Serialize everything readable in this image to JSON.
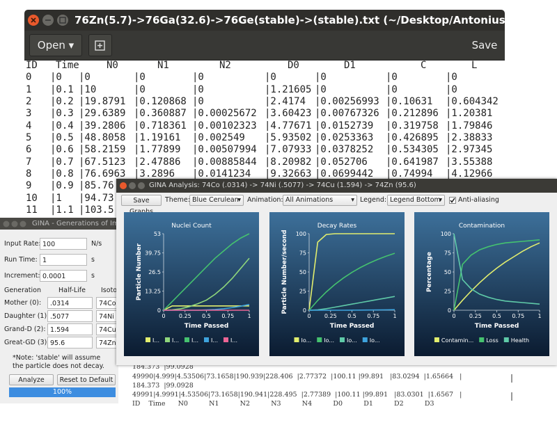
{
  "editor": {
    "title": "76Zn(5.7)->76Ga(32.6)->76Ge(stable)->(stable).txt (~/Desktop/Antonius-GINA/b..._",
    "open": "Open",
    "save": "Save",
    "header": [
      "ID",
      "Time",
      "N0",
      "N1",
      "N2",
      "D0",
      "D1",
      "C",
      "L"
    ],
    "rows": [
      [
        "0",
        "|0",
        "|0",
        "|0",
        "|0",
        "|0",
        "|0",
        "|0",
        "|0"
      ],
      [
        "1",
        "|0.1",
        "|10",
        "|0",
        "|0",
        "|1.21605",
        "|0",
        "|0",
        "|0"
      ],
      [
        "2",
        "|0.2",
        "|19.8791",
        "|0.120868",
        "|0",
        "|2.4174",
        "|0.00256993",
        "|0.10631",
        "|0.604342"
      ],
      [
        "3",
        "|0.3",
        "|29.6389",
        "|0.360887",
        "|0.00025672",
        "|3.60423",
        "|0.00767326",
        "|0.212896",
        "|1.20381"
      ],
      [
        "4",
        "|0.4",
        "|39.2806",
        "|0.718361",
        "|0.00102323",
        "|4.77671",
        "|0.0152739",
        "|0.319758",
        "|1.79846"
      ],
      [
        "5",
        "|0.5",
        "|48.8058",
        "|1.19161",
        "|0.002549",
        "|5.93502",
        "|0.0253363",
        "|0.426895",
        "|2.38833"
      ],
      [
        "6",
        "|0.6",
        "|58.2159",
        "|1.77899",
        "|0.00507994",
        "|7.07933",
        "|0.0378252",
        "|0.534305",
        "|2.97345"
      ],
      [
        "7",
        "|0.7",
        "|67.5123",
        "|2.47886",
        "|0.00885844",
        "|8.20982",
        "|0.052706",
        "|0.641987",
        "|3.55388"
      ],
      [
        "8",
        "|0.8",
        "|76.6963",
        "|3.2896",
        "|0.0141234",
        "|9.32663",
        "|0.0699442",
        "|0.74994",
        "|4.12966"
      ],
      [
        "9",
        "|0.9",
        "|85.76"
      ],
      [
        "10",
        "|1",
        "|94.73"
      ],
      [
        "11",
        "|1.1",
        "|103.5"
      ]
    ]
  },
  "gina": {
    "title": "GINA - Generations of Impl",
    "fields": [
      {
        "label": "Input Rate:",
        "value": "100",
        "unit": "N/s"
      },
      {
        "label": "Run Time:",
        "value": "1",
        "unit": "s"
      },
      {
        "label": "Increment:",
        "value": "0.0001",
        "unit": "s"
      }
    ],
    "generation_header": "Generation",
    "half_life_header": "Half-Life",
    "isotope_header": "Isoto",
    "generations": [
      {
        "label": "Mother (0):",
        "half_life": ".0314",
        "isotope": "74Co"
      },
      {
        "label": "Daughter (1):",
        "half_life": ".5077",
        "isotope": "74Ni"
      },
      {
        "label": "Grand-D (2):",
        "half_life": "1.594",
        "isotope": "74Cu"
      },
      {
        "label": "Great-GD (3):",
        "half_life": "95.6",
        "isotope": "74Zn"
      }
    ],
    "note": "*Note: 'stable' will assume the particle does not decay.",
    "analyze": "Analyze",
    "reset": "Reset to Default",
    "progress": {
      "value": 100,
      "label": "100%"
    }
  },
  "analysis": {
    "title": "GINA Analysis: 74Co (.0314) -> 74Ni (.5077) -> 74Cu (1.594) -> 74Zn (95.6)",
    "save_graphs": "Save Graphs",
    "theme_label": "Theme:",
    "theme": "Blue Cerulean",
    "animation_label": "Animation:",
    "animation": "All Animations",
    "legend_label": "Legend:",
    "legend": "Legend Bottom",
    "antialiasing": "Anti-aliasing"
  },
  "chart_data": [
    {
      "type": "line",
      "title": "Nuclei Count",
      "xlabel": "Time Passed",
      "ylabel": "Particle Number",
      "legend": "bottom",
      "grid": false,
      "x": [
        0,
        0.1,
        0.2,
        0.3,
        0.4,
        0.5,
        0.6,
        0.7,
        0.8,
        0.9,
        1
      ],
      "xlim": [
        0,
        1
      ],
      "xticks": [
        0,
        0.25,
        0.5,
        0.75,
        1
      ],
      "ylim": [
        0,
        53
      ],
      "yticks": [
        0,
        13.25,
        26.5,
        39.75,
        53
      ],
      "series": [
        {
          "name": "I...",
          "color": "#e2ee6e",
          "values": [
            0,
            3,
            3,
            3,
            3,
            3,
            3,
            3,
            3,
            3,
            3
          ]
        },
        {
          "name": "I...",
          "color": "#8fd77c",
          "values": [
            0,
            0.3,
            1,
            2.5,
            4.5,
            7,
            11,
            16,
            22,
            29,
            36
          ]
        },
        {
          "name": "I...",
          "color": "#45c26f",
          "values": [
            0,
            6,
            12,
            18,
            24,
            30,
            36,
            41,
            46,
            50,
            53
          ]
        },
        {
          "name": "I...",
          "color": "#3ea3dd",
          "values": [
            0,
            0,
            0,
            0,
            0,
            0.2,
            0.5,
            1,
            1.8,
            2.8,
            4
          ]
        },
        {
          "name": "I...",
          "color": "#ec6595",
          "values": [
            0,
            0,
            0,
            0,
            0,
            0,
            0,
            0,
            0,
            0,
            0
          ]
        }
      ]
    },
    {
      "type": "line",
      "title": "Decay Rates",
      "xlabel": "Time Passed",
      "ylabel": "Particle Number/second",
      "legend": "bottom",
      "grid": false,
      "x": [
        0,
        0.1,
        0.2,
        0.3,
        0.4,
        0.5,
        0.6,
        0.7,
        0.8,
        0.9,
        1
      ],
      "xlim": [
        0,
        1
      ],
      "xticks": [
        0,
        0.25,
        0.5,
        0.75,
        1
      ],
      "ylim": [
        0,
        100
      ],
      "yticks": [
        0,
        25,
        50,
        75,
        100
      ],
      "series": [
        {
          "name": "Io...",
          "color": "#e2ee6e",
          "values": [
            0,
            89,
            99,
            100,
            100,
            100,
            100,
            100,
            100,
            100,
            100
          ]
        },
        {
          "name": "Io...",
          "color": "#45c26f",
          "values": [
            0,
            12.7,
            23.9,
            33.6,
            42.1,
            49.5,
            55.9,
            61.5,
            66.4,
            70.7,
            74.4
          ]
        },
        {
          "name": "Io...",
          "color": "#5fcaa8",
          "values": [
            0,
            0.5,
            2,
            4,
            6,
            8,
            10,
            12,
            14,
            16,
            18
          ]
        },
        {
          "name": "Io...",
          "color": "#3ea3dd",
          "values": [
            0,
            0,
            0,
            0,
            0,
            0.1,
            0.2,
            0.3,
            0.4,
            0.5,
            0.7
          ]
        }
      ]
    },
    {
      "type": "line",
      "title": "Contamination",
      "xlabel": "Time Passed",
      "ylabel": "Percentage",
      "legend": "bottom",
      "grid": false,
      "x": [
        0,
        0.1,
        0.2,
        0.3,
        0.4,
        0.5,
        0.6,
        0.7,
        0.8,
        0.9,
        1
      ],
      "xlim": [
        0,
        1
      ],
      "xticks": [
        0,
        0.25,
        0.5,
        0.75,
        1
      ],
      "ylim": [
        0,
        100
      ],
      "yticks": [
        0,
        25,
        50,
        75,
        100
      ],
      "series": [
        {
          "name": "Contamin...",
          "color": "#e2ee6e",
          "values": [
            0,
            13,
            25,
            36,
            46,
            55,
            63,
            70,
            77,
            83,
            88
          ]
        },
        {
          "name": "Loss",
          "color": "#45c26f",
          "values": [
            0,
            60,
            72,
            79,
            83,
            86,
            88,
            89,
            90,
            91,
            92
          ]
        },
        {
          "name": "Health",
          "color": "#5fcaa8",
          "values": [
            100,
            40,
            28,
            21,
            17,
            14,
            12,
            11,
            10,
            9,
            8
          ]
        }
      ]
    }
  ],
  "bottom_text": {
    "lines": [
      "184.373  |99.0928",
      "49990|4.999|4.53506|73.1658|190.939|228.406  |2.77372  |100.11 |99.891   |83.0294  |1.65664   |",
      "184.373  |99.0928",
      "49991|4.9991|4.53506|73.1658|190.941|228.495  |2.77389  |100.11 |99.891   |83.0301  |1.6567   |",
      "ID    Time      N0          N1          N2          N3          N4          D0          D1          D2          D3"
    ]
  }
}
